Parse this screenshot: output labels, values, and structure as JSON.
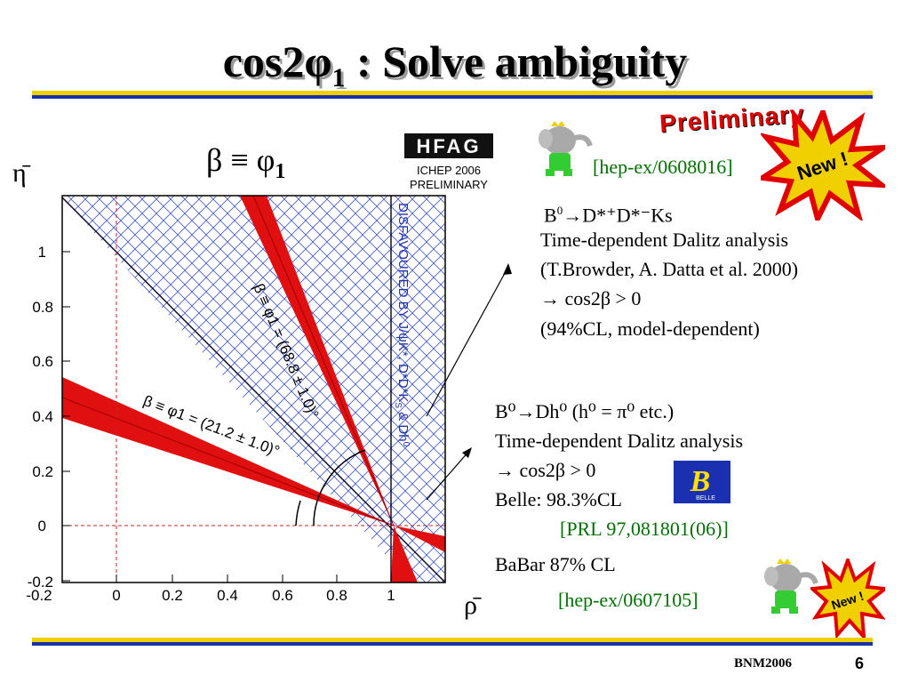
{
  "slide": {
    "title_main": "cos2φ",
    "title_sub": "1",
    "title_rest": " : Solve ambiguity",
    "footer_left": "BNM2006",
    "page_number": "6"
  },
  "plot": {
    "header_formula": "β ≡ φ",
    "header_sub": "1",
    "y_axis_label": "η̄",
    "x_axis_label": "ρ̄",
    "x_ticks": [
      "-0.2",
      "0",
      "0.2",
      "0.4",
      "0.6",
      "0.8",
      "1"
    ],
    "y_ticks": [
      "1",
      "0.8",
      "0.6",
      "0.4",
      "0.2",
      "0",
      "-0.2"
    ],
    "hfag_logo": "HFAG",
    "hfag_conf": "ICHEP 2006",
    "hfag_status": "PRELIMINARY",
    "disfavoured_text": "DISFAVOURED BY J/ψK*, D*D*K",
    "disfavoured_sub": "S",
    "disfavoured_tail": " & Dh",
    "disfavoured_sup": "0",
    "band1_label": "β ≡ φ1 = (68.8 ± 1.0)°",
    "band2_label": "β ≡ φ1 = (21.2 ± 1.0)°"
  },
  "badges": {
    "preliminary": "Preliminary",
    "new1": "New !",
    "new2": "New !",
    "belle_logo": "BELLE"
  },
  "ref1": "[hep-ex/0608016]",
  "block1": {
    "line1_pre": "B",
    "line1_sup": "0",
    "line1_post": "→D*⁺D*⁻Ks",
    "line2": "Time-dependent Dalitz analysis",
    "line3": "(T.Browder, A. Datta et al. 2000)",
    "line4": "→ cos2β > 0",
    "line5": "(94%CL, model-dependent)"
  },
  "block2": {
    "line1": "B⁰→Dh⁰ (h⁰ = π⁰ etc.)",
    "line2": "Time-dependent Dalitz analysis",
    "line3": "→ cos2β > 0",
    "line4": "Belle: 98.3%CL",
    "ref_belle": "[PRL 97,081801(06)]",
    "babar": "BaBar 87% CL",
    "ref_babar": "[hep-ex/0607105]"
  }
}
